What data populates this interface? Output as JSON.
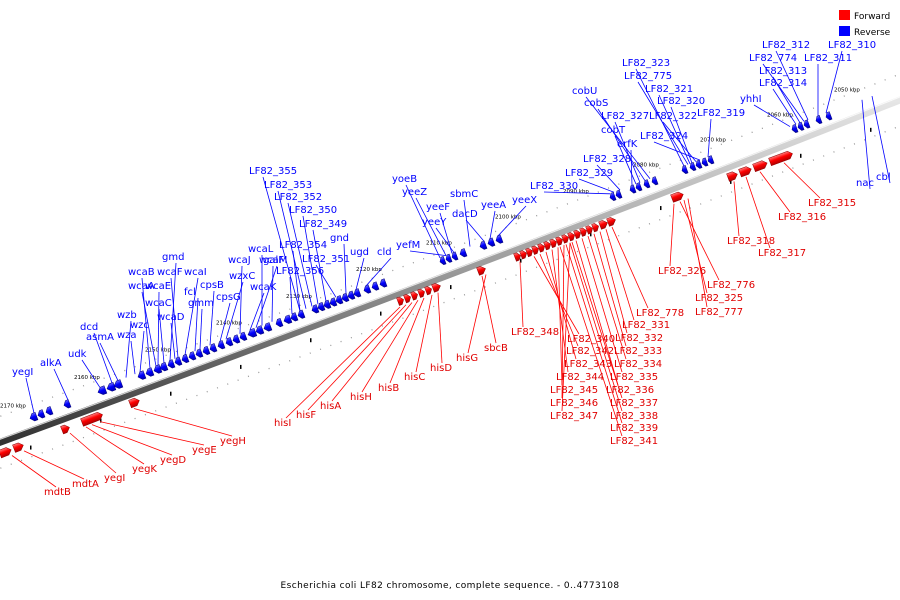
{
  "legend": {
    "forward": {
      "label": "Forward",
      "color": "#ff0000"
    },
    "reverse": {
      "label": "Reverse",
      "color": "#0000ff"
    }
  },
  "caption": "Escherichia coli LF82 chromosome, complete sequence. - 0..4773108",
  "scale_labels": [
    "2170 kbp",
    "2160 kbp",
    "2150 kbp",
    "2140 kbp",
    "2130 kbp",
    "2120 kbp",
    "2110 kbp",
    "2100 kbp",
    "2090 kbp",
    "2080 kbp",
    "2070 kbp",
    "2060 kbp",
    "2050 kbp"
  ],
  "reverse_genes": [
    "yegI",
    "alkA",
    "udk",
    "dcd",
    "asmA",
    "wzb",
    "wza",
    "wzc",
    "wcaB",
    "wcaA",
    "wcaC",
    "wcaE",
    "wcaD",
    "gmd",
    "wcaF",
    "wcaI",
    "fcl",
    "gmm",
    "cpsB",
    "cpsG",
    "wzxC",
    "wcaJ",
    "wcaK",
    "galF",
    "wcaL",
    "wcaM",
    "LF82_355",
    "LF82_353",
    "LF82_352",
    "LF82_350",
    "LF82_349",
    "LF82_354",
    "LF82_356",
    "LF82_351",
    "gnd",
    "ugd",
    "cld",
    "yoeB",
    "yeeZ",
    "yeeF",
    "yeeY",
    "yefM",
    "sbmC",
    "dacD",
    "yeeA",
    "yeeX",
    "LF82_330",
    "LF82_329",
    "LF82_328",
    "erfK",
    "cobT",
    "LF82_327",
    "cobS",
    "cobU",
    "LF82_323",
    "LF82_775",
    "LF82_321",
    "LF82_320",
    "LF82_322",
    "LF82_324",
    "LF82_319",
    "yhhI",
    "LF82_314",
    "LF82_313",
    "LF82_774",
    "LF82_312",
    "LF82_311",
    "LF82_310",
    "nac",
    "cbl"
  ],
  "forward_genes": [
    "mdtB",
    "mdtA",
    "yegI",
    "yegK",
    "yegD",
    "yegE",
    "yegH",
    "hisI",
    "hisF",
    "hisA",
    "hisH",
    "hisB",
    "hisC",
    "hisD",
    "hisG",
    "sbcB",
    "LF82_348",
    "LF82_340",
    "LF82_342",
    "LF82_343",
    "LF82_344",
    "LF82_345",
    "LF82_346",
    "LF82_347",
    "LF82_778",
    "LF82_331",
    "LF82_332",
    "LF82_333",
    "LF82_334",
    "LF82_335",
    "LF82_336",
    "LF82_337",
    "LF82_338",
    "LF82_339",
    "LF82_341",
    "LF82_326",
    "LF82_776",
    "LF82_325",
    "LF82_777",
    "LF82_318",
    "LF82_317",
    "LF82_316",
    "LF82_315"
  ]
}
